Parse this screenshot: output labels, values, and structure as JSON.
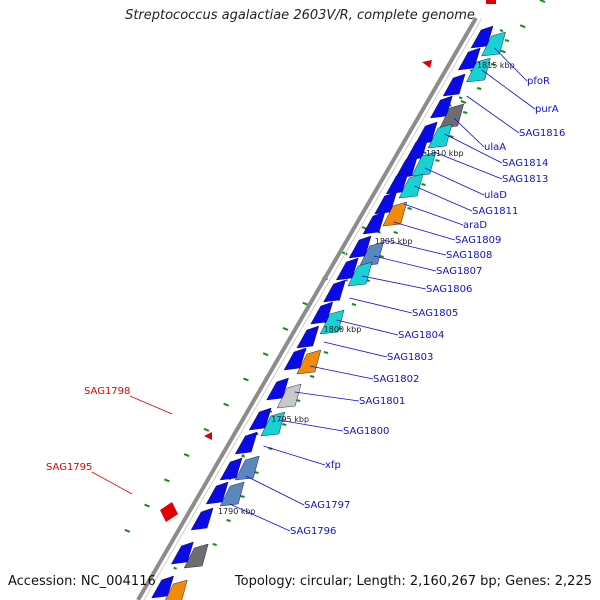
{
  "title": "Streptococcus agalactiae 2603V/R, complete genome",
  "footer": {
    "accession": "Accession: NC_004116",
    "summary": "Topology: circular; Length: 2,160,267 bp; Genes: 2,225"
  },
  "kbp_ticks": [
    "1815 kbp",
    "1810 kbp",
    "1805 kbp",
    "1800 kbp",
    "1795 kbp",
    "1790 kbp"
  ],
  "labels": [
    {
      "text": "pfoR",
      "color": "#1010cc"
    },
    {
      "text": "purA",
      "color": "#1010cc"
    },
    {
      "text": "SAG1816",
      "color": "#1010cc"
    },
    {
      "text": "ulaA",
      "color": "#1010cc"
    },
    {
      "text": "SAG1814",
      "color": "#1010cc"
    },
    {
      "text": "SAG1813",
      "color": "#1010cc"
    },
    {
      "text": "ulaD",
      "color": "#1010cc"
    },
    {
      "text": "SAG1811",
      "color": "#1010cc"
    },
    {
      "text": "araD",
      "color": "#1010cc"
    },
    {
      "text": "SAG1809",
      "color": "#1010cc"
    },
    {
      "text": "SAG1808",
      "color": "#1010cc"
    },
    {
      "text": "SAG1807",
      "color": "#1010cc"
    },
    {
      "text": "SAG1806",
      "color": "#1010cc"
    },
    {
      "text": "SAG1805",
      "color": "#1010cc"
    },
    {
      "text": "SAG1804",
      "color": "#1010cc"
    },
    {
      "text": "SAG1803",
      "color": "#1010cc"
    },
    {
      "text": "SAG1802",
      "color": "#1010cc"
    },
    {
      "text": "SAG1801",
      "color": "#1010cc"
    },
    {
      "text": "SAG1800",
      "color": "#1010cc"
    },
    {
      "text": "xfp",
      "color": "#1010cc"
    },
    {
      "text": "SAG1797",
      "color": "#1010cc"
    },
    {
      "text": "SAG1796",
      "color": "#1010cc"
    },
    {
      "text": "SAG1798",
      "color": "#e00000"
    },
    {
      "text": "SAG1795",
      "color": "#e00000"
    }
  ],
  "colors": {
    "cds_forward": "#0a0ae6",
    "cds_reverse": "#e00000",
    "cog_cyan": "#18d2d2",
    "cog_orange": "#f08c0a",
    "cog_gray": "#6e6e6e",
    "cog_light": "#c8c8c8",
    "cog_steel": "#5a87be",
    "backbone": "#8c8c8c",
    "gc_dots": "#1a8a1a"
  }
}
